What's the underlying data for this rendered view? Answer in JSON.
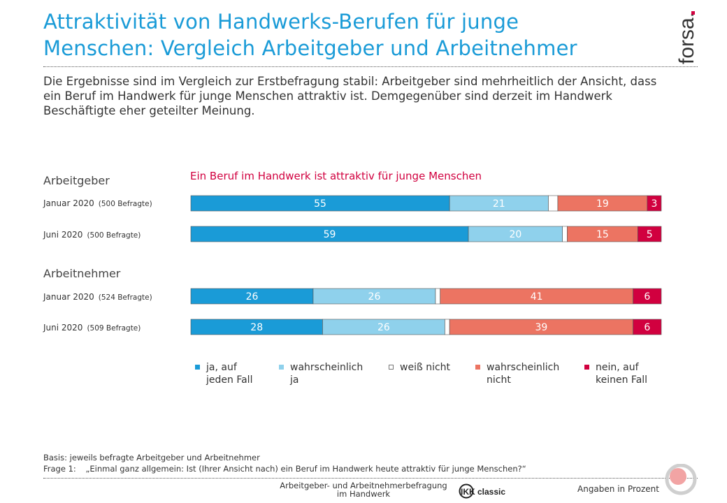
{
  "title_line1": "Attraktivität von Handwerks-Berufen für junge",
  "title_line2": "Menschen: Vergleich Arbeitgeber und Arbeitnehmer",
  "brand": "forsa.",
  "subtitle": "Die Ergebnisse sind im Vergleich zur Erstbefragung stabil: Arbeitgeber sind mehrheitlich der Ansicht, dass ein Beruf im Handwerk für junge Menschen attraktiv ist. Demgegenüber sind derzeit im Handwerk Beschäftigte eher geteilter Meinung.",
  "groups": {
    "employers": "Arbeitgeber",
    "employees": "Arbeitnehmer"
  },
  "rows": [
    {
      "period": "Januar 2020",
      "sample": "(500 Befragte)"
    },
    {
      "period": "Juni 2020",
      "sample": "(500 Befragte)"
    },
    {
      "period": "Januar 2020",
      "sample": "(524 Befragte)"
    },
    {
      "period": "Juni 2020",
      "sample": "(509 Befragte)"
    }
  ],
  "chart_data": {
    "type": "bar",
    "orientation": "horizontal",
    "stacked": true,
    "title": "Ein Beruf im Handwerk ist attraktiv für junge Menschen",
    "categories": [
      "Arbeitgeber – Januar 2020 (500 Befragte)",
      "Arbeitgeber – Juni 2020 (500 Befragte)",
      "Arbeitnehmer – Januar 2020 (524 Befragte)",
      "Arbeitnehmer – Juni 2020 (509 Befragte)"
    ],
    "series": [
      {
        "name": "ja, auf jeden Fall",
        "color": "#1a9bd7",
        "values": [
          55,
          59,
          26,
          28
        ]
      },
      {
        "name": "wahrscheinlich ja",
        "color": "#8fd1ec",
        "values": [
          21,
          20,
          26,
          26
        ]
      },
      {
        "name": "weiß nicht",
        "color": "#ffffff",
        "values": [
          2,
          1,
          1,
          1
        ]
      },
      {
        "name": "wahrscheinlich nicht",
        "color": "#ec7462",
        "values": [
          19,
          15,
          41,
          39
        ]
      },
      {
        "name": "nein, auf keinen Fall",
        "color": "#d1003f",
        "values": [
          3,
          5,
          6,
          6
        ]
      }
    ],
    "labeled_series": [
      0,
      1,
      3,
      4
    ],
    "unit": "Angaben in Prozent",
    "legend_position": "bottom"
  },
  "legend": [
    {
      "line1": "ja, auf",
      "line2": "jeden Fall"
    },
    {
      "line1": "wahrscheinlich",
      "line2": "ja"
    },
    {
      "line1": "weiß nicht",
      "line2": ""
    },
    {
      "line1": "wahrscheinlich",
      "line2": "nicht"
    },
    {
      "line1": "nein, auf",
      "line2": "keinen Fall"
    }
  ],
  "footnotes": {
    "basis": "Basis: jeweils befragte Arbeitgeber und Arbeitnehmer",
    "question_label": "Frage 1:",
    "question": "„Einmal ganz allgemein: Ist (Ihrer Ansicht nach) ein Beruf im Handwerk heute attraktiv für junge Menschen?“"
  },
  "footer": {
    "survey_line1": "Arbeitgeber- und Arbeitnehmerbefragung",
    "survey_line2": "im Handwerk",
    "partner": "IKK classic",
    "unit": "Angaben in Prozent"
  },
  "colors": {
    "title": "#1a9bd7",
    "accent": "#d1003f"
  }
}
